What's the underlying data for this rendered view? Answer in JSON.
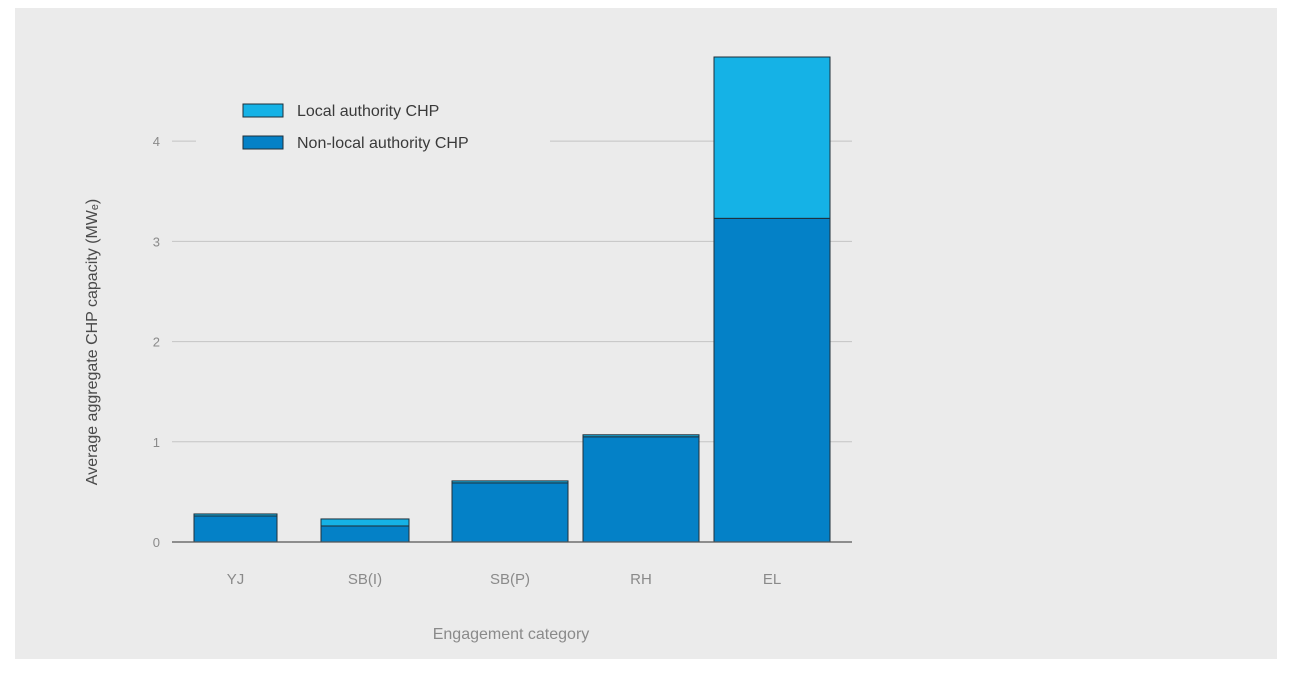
{
  "chart_data": {
    "type": "bar",
    "stacked": true,
    "categories": [
      "YJ",
      "SB(I)",
      "SB(P)",
      "RH",
      "EL"
    ],
    "series": [
      {
        "name": "Local authority CHP",
        "color": "#15b2e6",
        "values": [
          0.02,
          0.07,
          0.02,
          0.02,
          1.61
        ]
      },
      {
        "name": "Non-local authority CHP",
        "color": "#0481c7",
        "values": [
          0.26,
          0.16,
          0.59,
          1.05,
          3.23
        ]
      }
    ],
    "xlabel": "Engagement category",
    "ylabel": "Average aggregate CHP capacity (MWₑ)",
    "ylim": [
      0,
      4.84
    ],
    "yticks": [
      0,
      1,
      2,
      3,
      4
    ],
    "grid": true,
    "legend_position": "top-left"
  }
}
